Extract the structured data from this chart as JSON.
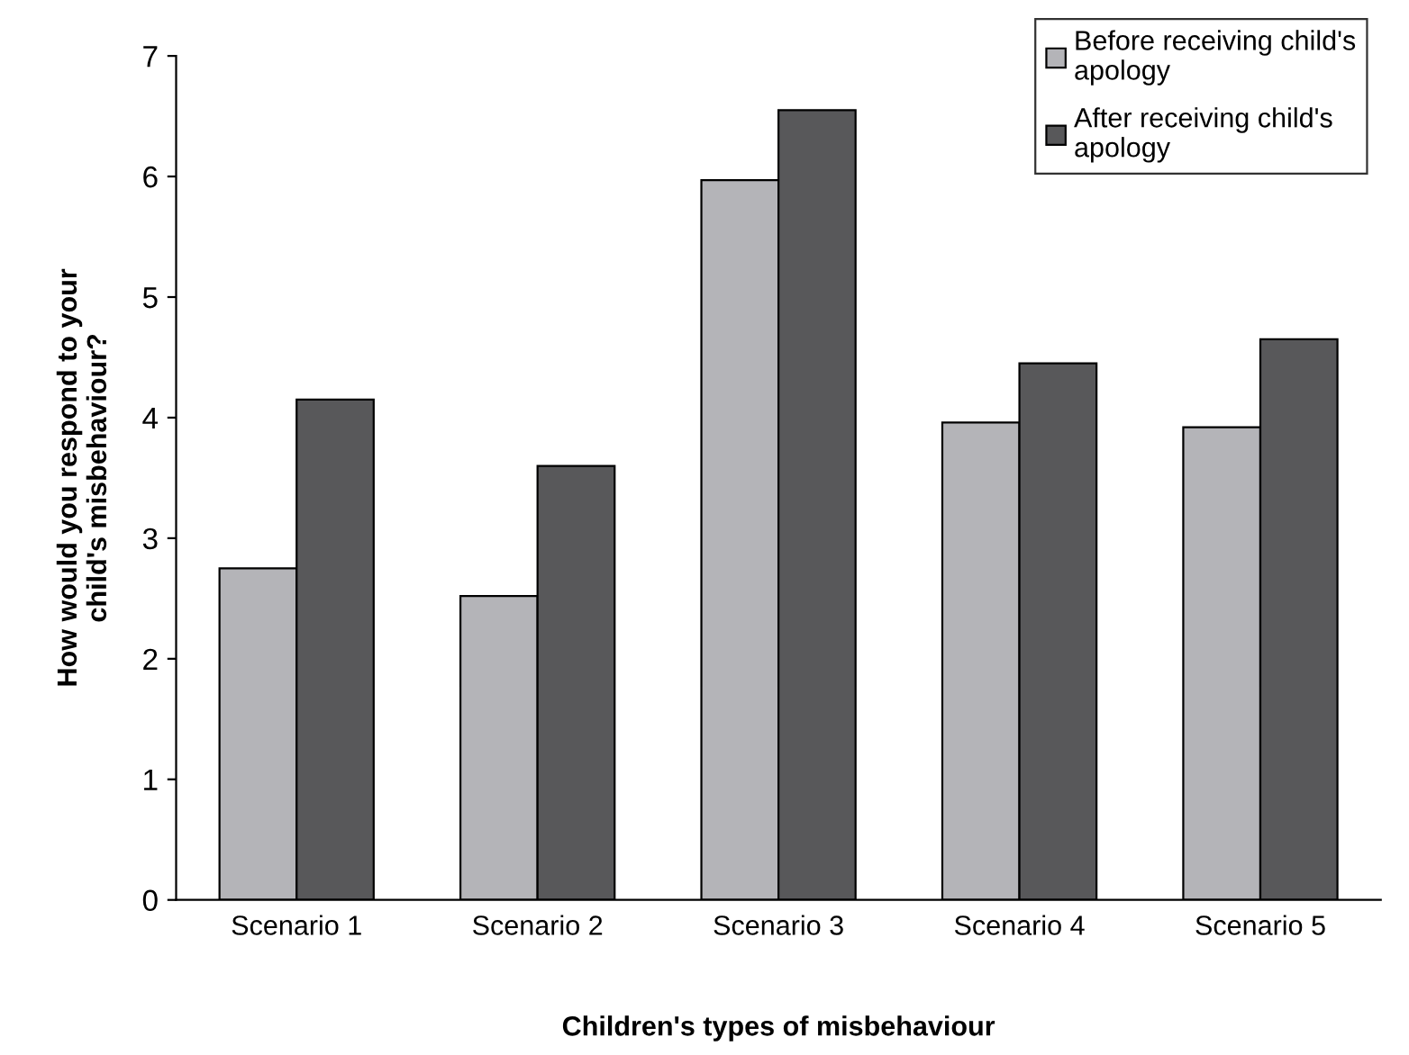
{
  "chart_data": {
    "type": "bar",
    "xlabel": "Children's types of misbehaviour",
    "ylabel": "How would you respond to your\nchild's misbehaviour?",
    "categories": [
      "Scenario 1",
      "Scenario 2",
      "Scenario 3",
      "Scenario 4",
      "Scenario 5"
    ],
    "series": [
      {
        "name": "Before receiving child's\napology",
        "color": "#b4b4b8",
        "values": [
          2.75,
          2.52,
          5.97,
          3.96,
          3.92
        ]
      },
      {
        "name": "After receiving child's\napology",
        "color": "#58585a",
        "values": [
          4.15,
          3.6,
          6.55,
          4.45,
          4.65
        ]
      }
    ],
    "ylim": [
      0,
      7
    ],
    "yticks": [
      0,
      1,
      2,
      3,
      4,
      5,
      6,
      7
    ],
    "grid": false,
    "legend": "top right"
  }
}
